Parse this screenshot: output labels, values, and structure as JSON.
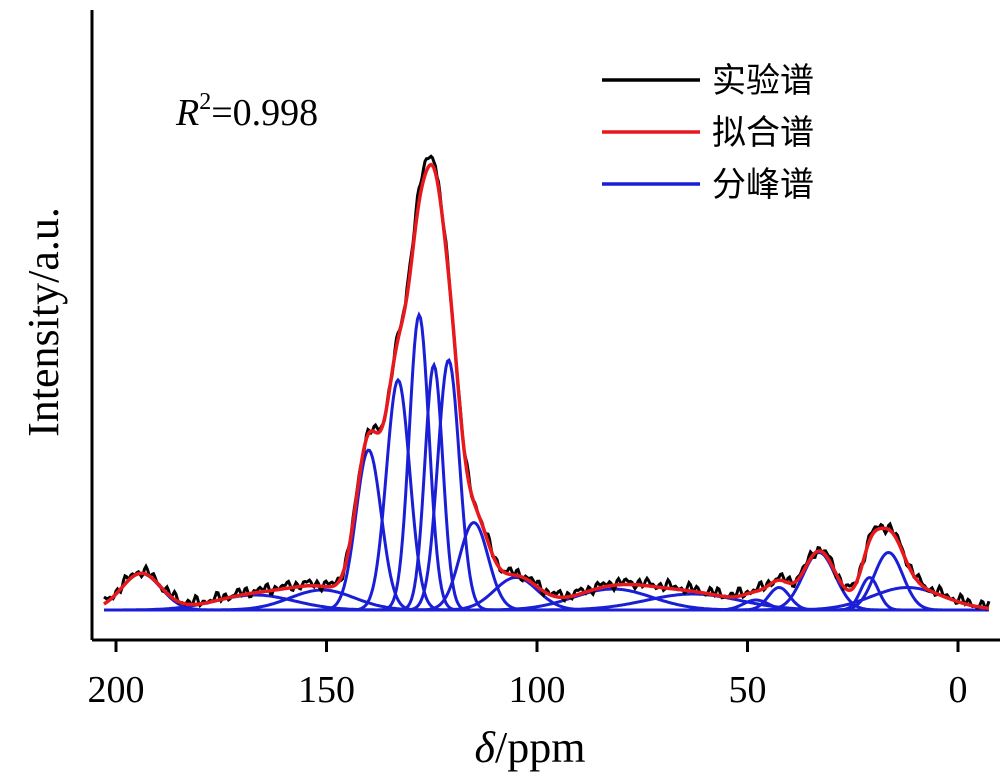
{
  "chart_data": {
    "type": "line",
    "xlabel": {
      "symbol": "δ",
      "unit": "/ppm"
    },
    "ylabel": "Intensity/a.u.",
    "x_reversed": true,
    "xlim": [
      207,
      -7
    ],
    "ylim": [
      0,
      1.02
    ],
    "xticks": [
      200,
      150,
      100,
      50,
      0
    ],
    "yticks_shown": false,
    "grid": false,
    "legend_position": "top-right",
    "annotation": {
      "symbol": "R",
      "exponent": "2",
      "value": "=0.998"
    },
    "series": [
      {
        "name": "实验谱",
        "color": "#000000",
        "role": "experimental"
      },
      {
        "name": "拟合谱",
        "color": "#e8191d",
        "role": "fit"
      },
      {
        "name": "分峰谱",
        "color": "#1a1fd6",
        "role": "deconvoluted"
      }
    ],
    "deconvoluted_peaks": [
      {
        "center": 194,
        "height": 0.073,
        "fwhm": 11
      },
      {
        "center": 167,
        "height": 0.03,
        "fwhm": 22
      },
      {
        "center": 151,
        "height": 0.04,
        "fwhm": 18
      },
      {
        "center": 140,
        "height": 0.32,
        "fwhm": 7
      },
      {
        "center": 133,
        "height": 0.46,
        "fwhm": 6.5
      },
      {
        "center": 128,
        "height": 0.59,
        "fwhm": 5.5
      },
      {
        "center": 124.5,
        "height": 0.49,
        "fwhm": 5
      },
      {
        "center": 121,
        "height": 0.5,
        "fwhm": 6
      },
      {
        "center": 115,
        "height": 0.175,
        "fwhm": 8
      },
      {
        "center": 105,
        "height": 0.065,
        "fwhm": 12
      },
      {
        "center": 82,
        "height": 0.042,
        "fwhm": 22
      },
      {
        "center": 63,
        "height": 0.032,
        "fwhm": 26
      },
      {
        "center": 48,
        "height": 0.02,
        "fwhm": 7
      },
      {
        "center": 42.5,
        "height": 0.045,
        "fwhm": 6
      },
      {
        "center": 33,
        "height": 0.115,
        "fwhm": 9
      },
      {
        "center": 21,
        "height": 0.065,
        "fwhm": 5
      },
      {
        "center": 16.5,
        "height": 0.115,
        "fwhm": 8
      },
      {
        "center": 12,
        "height": 0.045,
        "fwhm": 20
      }
    ],
    "fit_max_intensity": 1.0
  }
}
